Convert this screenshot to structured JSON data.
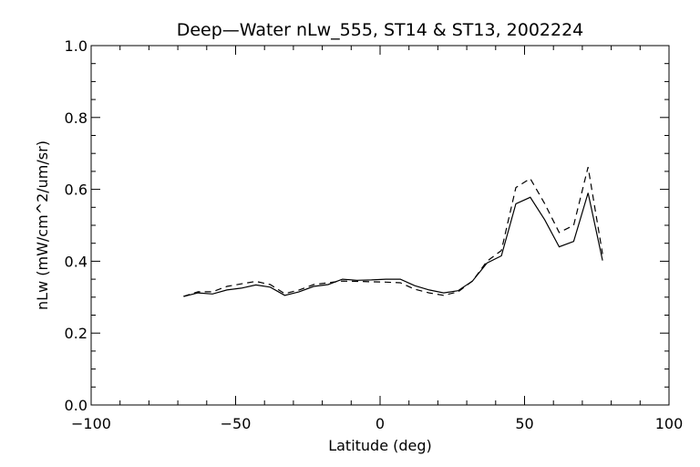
{
  "chart_data": {
    "type": "line",
    "title": "Deep—Water nLw_555, ST14 & ST13, 2002224",
    "xlabel": "Latitude (deg)",
    "ylabel": "nLw (mW/cm^2/um/sr)",
    "xlim": [
      -100,
      100
    ],
    "ylim": [
      0.0,
      1.0
    ],
    "x_ticks": [
      -100,
      -50,
      0,
      50,
      100
    ],
    "x_tick_labels": [
      "−100",
      "−50",
      "0",
      "50",
      "100"
    ],
    "y_ticks": [
      0.0,
      0.2,
      0.4,
      0.6,
      0.8,
      1.0
    ],
    "y_tick_labels": [
      "0.0",
      "0.2",
      "0.4",
      "0.6",
      "0.8",
      "1.0"
    ],
    "grid": false,
    "legend": "none",
    "series": [
      {
        "style": "solid",
        "x": [
          -68,
          -63,
          -58,
          -53,
          -48,
          -43,
          -38,
          -33,
          -28,
          -23,
          -18,
          -13,
          -8,
          -3,
          2,
          7,
          12,
          17,
          22,
          27,
          32,
          37,
          42,
          47,
          52,
          57,
          62,
          67,
          72,
          77
        ],
        "values": [
          0.302,
          0.312,
          0.309,
          0.32,
          0.325,
          0.334,
          0.328,
          0.305,
          0.315,
          0.33,
          0.335,
          0.35,
          0.347,
          0.348,
          0.35,
          0.35,
          0.332,
          0.32,
          0.312,
          0.318,
          0.345,
          0.395,
          0.415,
          0.56,
          0.578,
          0.515,
          0.44,
          0.455,
          0.59,
          0.402
        ]
      },
      {
        "style": "dashed",
        "x": [
          -68,
          -63,
          -58,
          -53,
          -48,
          -43,
          -38,
          -33,
          -28,
          -23,
          -18,
          -13,
          -8,
          -3,
          2,
          7,
          12,
          17,
          22,
          27,
          32,
          37,
          42,
          47,
          52,
          57,
          62,
          67,
          72,
          77
        ],
        "values": [
          0.302,
          0.315,
          0.315,
          0.33,
          0.337,
          0.344,
          0.335,
          0.31,
          0.32,
          0.335,
          0.34,
          0.345,
          0.344,
          0.343,
          0.342,
          0.34,
          0.322,
          0.312,
          0.305,
          0.315,
          0.345,
          0.4,
          0.43,
          0.605,
          0.63,
          0.56,
          0.48,
          0.5,
          0.662,
          0.42
        ]
      }
    ]
  }
}
